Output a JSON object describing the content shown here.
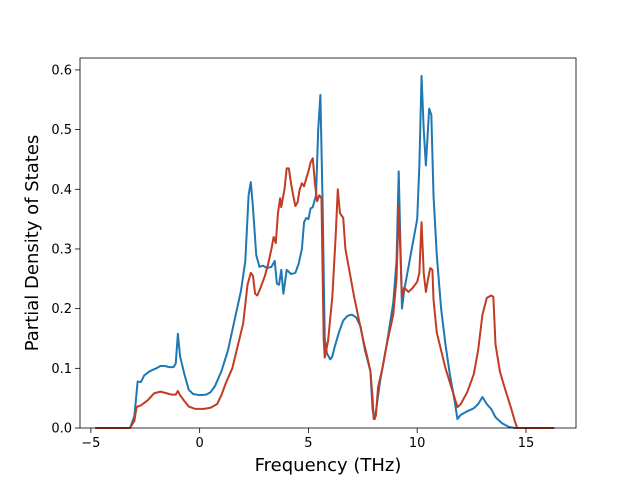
{
  "chart_data": {
    "type": "line",
    "title": "",
    "xlabel": "Frequency (THz)",
    "ylabel": "Partial Density of States",
    "xlim": [
      -5.5,
      17.3
    ],
    "ylim": [
      0.0,
      0.62
    ],
    "x_ticks": [
      -5,
      0,
      5,
      10,
      15
    ],
    "y_ticks": [
      0.0,
      0.1,
      0.2,
      0.3,
      0.4,
      0.5,
      0.6
    ],
    "x_tick_labels": [
      "−5",
      "0",
      "5",
      "10",
      "15"
    ],
    "y_tick_labels": [
      "0.0",
      "0.1",
      "0.2",
      "0.3",
      "0.4",
      "0.5",
      "0.6"
    ],
    "grid": false,
    "legend": false,
    "series": [
      {
        "color": "#1f77b4",
        "points": [
          [
            -4.8,
            0.0
          ],
          [
            -3.2,
            0.0
          ],
          [
            -3.0,
            0.02
          ],
          [
            -2.85,
            0.078
          ],
          [
            -2.7,
            0.077
          ],
          [
            -2.55,
            0.088
          ],
          [
            -2.3,
            0.095
          ],
          [
            -2.0,
            0.1
          ],
          [
            -1.8,
            0.104
          ],
          [
            -1.6,
            0.104
          ],
          [
            -1.4,
            0.102
          ],
          [
            -1.2,
            0.102
          ],
          [
            -1.1,
            0.108
          ],
          [
            -1.0,
            0.158
          ],
          [
            -0.9,
            0.12
          ],
          [
            -0.7,
            0.09
          ],
          [
            -0.5,
            0.064
          ],
          [
            -0.3,
            0.057
          ],
          [
            0.0,
            0.055
          ],
          [
            0.3,
            0.056
          ],
          [
            0.5,
            0.06
          ],
          [
            0.7,
            0.07
          ],
          [
            1.0,
            0.095
          ],
          [
            1.3,
            0.13
          ],
          [
            1.6,
            0.18
          ],
          [
            1.9,
            0.23
          ],
          [
            2.1,
            0.28
          ],
          [
            2.25,
            0.39
          ],
          [
            2.35,
            0.412
          ],
          [
            2.45,
            0.37
          ],
          [
            2.6,
            0.29
          ],
          [
            2.75,
            0.27
          ],
          [
            2.9,
            0.272
          ],
          [
            3.1,
            0.268
          ],
          [
            3.3,
            0.27
          ],
          [
            3.45,
            0.28
          ],
          [
            3.55,
            0.242
          ],
          [
            3.65,
            0.24
          ],
          [
            3.75,
            0.265
          ],
          [
            3.85,
            0.225
          ],
          [
            4.0,
            0.265
          ],
          [
            4.2,
            0.258
          ],
          [
            4.4,
            0.26
          ],
          [
            4.55,
            0.275
          ],
          [
            4.7,
            0.3
          ],
          [
            4.8,
            0.345
          ],
          [
            4.9,
            0.352
          ],
          [
            5.0,
            0.35
          ],
          [
            5.1,
            0.368
          ],
          [
            5.2,
            0.37
          ],
          [
            5.35,
            0.39
          ],
          [
            5.45,
            0.5
          ],
          [
            5.55,
            0.558
          ],
          [
            5.65,
            0.38
          ],
          [
            5.75,
            0.15
          ],
          [
            5.85,
            0.125
          ],
          [
            6.0,
            0.115
          ],
          [
            6.1,
            0.12
          ],
          [
            6.2,
            0.135
          ],
          [
            6.4,
            0.16
          ],
          [
            6.6,
            0.18
          ],
          [
            6.8,
            0.188
          ],
          [
            7.0,
            0.19
          ],
          [
            7.2,
            0.185
          ],
          [
            7.4,
            0.17
          ],
          [
            7.6,
            0.13
          ],
          [
            7.85,
            0.095
          ],
          [
            7.95,
            0.03
          ],
          [
            8.05,
            0.015
          ],
          [
            8.15,
            0.04
          ],
          [
            8.3,
            0.08
          ],
          [
            8.6,
            0.14
          ],
          [
            8.9,
            0.21
          ],
          [
            9.05,
            0.28
          ],
          [
            9.15,
            0.43
          ],
          [
            9.3,
            0.2
          ],
          [
            9.4,
            0.23
          ],
          [
            9.6,
            0.27
          ],
          [
            9.8,
            0.31
          ],
          [
            10.0,
            0.35
          ],
          [
            10.1,
            0.44
          ],
          [
            10.2,
            0.59
          ],
          [
            10.3,
            0.5
          ],
          [
            10.4,
            0.44
          ],
          [
            10.55,
            0.535
          ],
          [
            10.65,
            0.525
          ],
          [
            10.75,
            0.39
          ],
          [
            10.9,
            0.29
          ],
          [
            11.1,
            0.2
          ],
          [
            11.3,
            0.14
          ],
          [
            11.5,
            0.09
          ],
          [
            11.7,
            0.05
          ],
          [
            11.85,
            0.015
          ],
          [
            12.0,
            0.022
          ],
          [
            12.3,
            0.028
          ],
          [
            12.6,
            0.033
          ],
          [
            12.8,
            0.04
          ],
          [
            13.0,
            0.052
          ],
          [
            13.2,
            0.04
          ],
          [
            13.4,
            0.032
          ],
          [
            13.6,
            0.018
          ],
          [
            13.9,
            0.008
          ],
          [
            14.2,
            0.002
          ],
          [
            14.5,
            0.0
          ],
          [
            16.3,
            0.0
          ]
        ]
      },
      {
        "color": "#c23b22",
        "points": [
          [
            -4.8,
            0.0
          ],
          [
            -3.2,
            0.0
          ],
          [
            -3.0,
            0.012
          ],
          [
            -2.9,
            0.035
          ],
          [
            -2.7,
            0.038
          ],
          [
            -2.4,
            0.046
          ],
          [
            -2.1,
            0.058
          ],
          [
            -1.8,
            0.061
          ],
          [
            -1.5,
            0.058
          ],
          [
            -1.3,
            0.056
          ],
          [
            -1.1,
            0.056
          ],
          [
            -1.0,
            0.062
          ],
          [
            -0.9,
            0.055
          ],
          [
            -0.7,
            0.045
          ],
          [
            -0.5,
            0.036
          ],
          [
            -0.2,
            0.032
          ],
          [
            0.2,
            0.032
          ],
          [
            0.5,
            0.034
          ],
          [
            0.8,
            0.04
          ],
          [
            1.0,
            0.055
          ],
          [
            1.2,
            0.075
          ],
          [
            1.5,
            0.1
          ],
          [
            1.8,
            0.145
          ],
          [
            2.0,
            0.175
          ],
          [
            2.2,
            0.24
          ],
          [
            2.35,
            0.26
          ],
          [
            2.45,
            0.255
          ],
          [
            2.55,
            0.225
          ],
          [
            2.65,
            0.222
          ],
          [
            2.8,
            0.235
          ],
          [
            3.0,
            0.255
          ],
          [
            3.15,
            0.275
          ],
          [
            3.3,
            0.3
          ],
          [
            3.4,
            0.32
          ],
          [
            3.5,
            0.31
          ],
          [
            3.6,
            0.36
          ],
          [
            3.7,
            0.385
          ],
          [
            3.75,
            0.37
          ],
          [
            3.9,
            0.4
          ],
          [
            4.0,
            0.435
          ],
          [
            4.1,
            0.435
          ],
          [
            4.2,
            0.41
          ],
          [
            4.3,
            0.39
          ],
          [
            4.4,
            0.372
          ],
          [
            4.5,
            0.378
          ],
          [
            4.6,
            0.4
          ],
          [
            4.7,
            0.41
          ],
          [
            4.8,
            0.405
          ],
          [
            4.9,
            0.418
          ],
          [
            5.0,
            0.43
          ],
          [
            5.1,
            0.445
          ],
          [
            5.2,
            0.452
          ],
          [
            5.3,
            0.41
          ],
          [
            5.4,
            0.38
          ],
          [
            5.5,
            0.39
          ],
          [
            5.6,
            0.385
          ],
          [
            5.7,
            0.15
          ],
          [
            5.75,
            0.118
          ],
          [
            5.9,
            0.145
          ],
          [
            6.1,
            0.22
          ],
          [
            6.25,
            0.32
          ],
          [
            6.35,
            0.4
          ],
          [
            6.45,
            0.36
          ],
          [
            6.6,
            0.352
          ],
          [
            6.7,
            0.3
          ],
          [
            6.9,
            0.26
          ],
          [
            7.1,
            0.22
          ],
          [
            7.3,
            0.185
          ],
          [
            7.5,
            0.15
          ],
          [
            7.7,
            0.12
          ],
          [
            7.85,
            0.095
          ],
          [
            7.95,
            0.05
          ],
          [
            8.0,
            0.015
          ],
          [
            8.1,
            0.02
          ],
          [
            8.2,
            0.068
          ],
          [
            8.4,
            0.1
          ],
          [
            8.6,
            0.14
          ],
          [
            8.9,
            0.19
          ],
          [
            9.05,
            0.25
          ],
          [
            9.15,
            0.372
          ],
          [
            9.3,
            0.22
          ],
          [
            9.4,
            0.235
          ],
          [
            9.6,
            0.228
          ],
          [
            9.8,
            0.235
          ],
          [
            10.0,
            0.245
          ],
          [
            10.1,
            0.26
          ],
          [
            10.2,
            0.345
          ],
          [
            10.3,
            0.26
          ],
          [
            10.4,
            0.228
          ],
          [
            10.5,
            0.25
          ],
          [
            10.6,
            0.268
          ],
          [
            10.7,
            0.265
          ],
          [
            10.75,
            0.215
          ],
          [
            10.9,
            0.16
          ],
          [
            11.1,
            0.13
          ],
          [
            11.3,
            0.1
          ],
          [
            11.6,
            0.065
          ],
          [
            11.85,
            0.035
          ],
          [
            12.0,
            0.04
          ],
          [
            12.3,
            0.06
          ],
          [
            12.6,
            0.09
          ],
          [
            12.8,
            0.13
          ],
          [
            13.0,
            0.19
          ],
          [
            13.2,
            0.218
          ],
          [
            13.4,
            0.222
          ],
          [
            13.5,
            0.22
          ],
          [
            13.6,
            0.14
          ],
          [
            13.8,
            0.095
          ],
          [
            14.0,
            0.07
          ],
          [
            14.3,
            0.035
          ],
          [
            14.5,
            0.01
          ],
          [
            14.6,
            0.0
          ],
          [
            16.3,
            0.0
          ]
        ]
      }
    ]
  }
}
